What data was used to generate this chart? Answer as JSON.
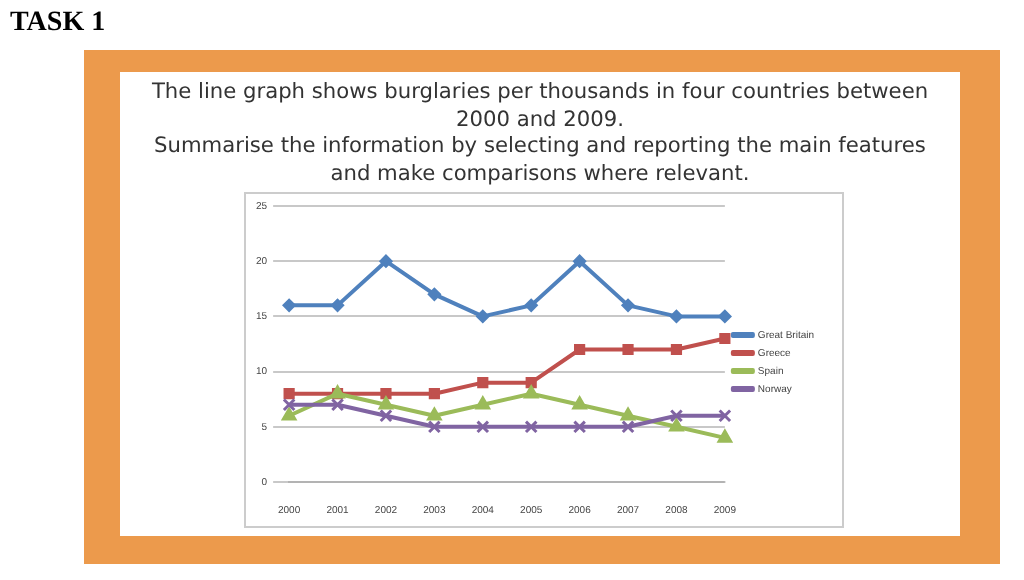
{
  "chart_data": {
    "type": "line",
    "title": "TASK 1",
    "annotations": [
      "The line graph shows burglaries per thousands in four countries between 2000 and 2009.",
      "Summarise the information by selecting and reporting the main features and make comparisons where relevant."
    ],
    "categories": [
      "2000",
      "2001",
      "2002",
      "2003",
      "2004",
      "2005",
      "2006",
      "2007",
      "2008",
      "2009"
    ],
    "series": [
      {
        "name": "Great Britain",
        "color": "#4f81bd",
        "marker": "diamond",
        "values": [
          16,
          16,
          20,
          17,
          15,
          16,
          20,
          16,
          15,
          15
        ]
      },
      {
        "name": "Greece",
        "color": "#c0504d",
        "marker": "square",
        "values": [
          8,
          8,
          8,
          8,
          9,
          9,
          12,
          12,
          12,
          13
        ]
      },
      {
        "name": "Spain",
        "color": "#9bbb59",
        "marker": "triangle",
        "values": [
          6,
          8,
          7,
          6,
          7,
          8,
          7,
          6,
          5,
          4
        ]
      },
      {
        "name": "Norway",
        "color": "#8064a2",
        "marker": "cross",
        "values": [
          7,
          7,
          6,
          5,
          5,
          5,
          5,
          5,
          6,
          6
        ]
      }
    ],
    "ylim": [
      0,
      25
    ],
    "yticks": [
      0,
      5,
      10,
      15,
      20,
      25
    ],
    "grid": "y",
    "legend": "right"
  }
}
